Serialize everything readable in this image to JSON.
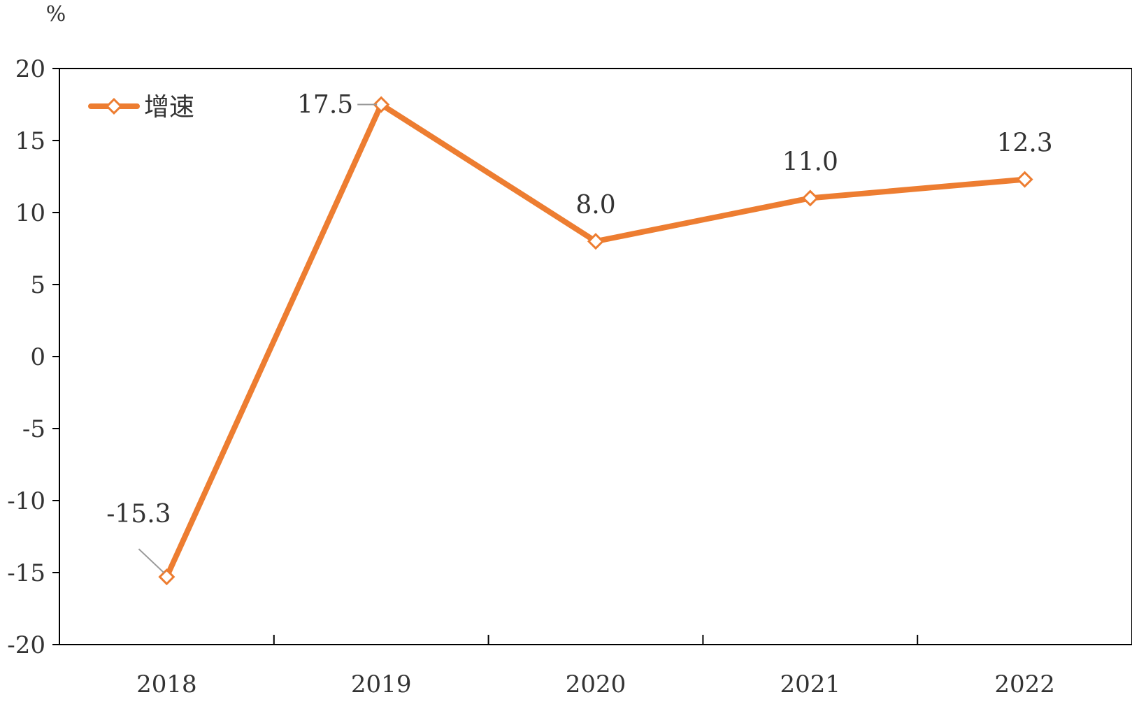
{
  "chart_data": {
    "type": "line",
    "title": "",
    "xlabel": "",
    "ylabel": "%",
    "categories": [
      "2018",
      "2019",
      "2020",
      "2021",
      "2022"
    ],
    "series": [
      {
        "name": "增速",
        "values": [
          -15.3,
          17.5,
          8.0,
          11.0,
          12.3
        ]
      }
    ],
    "data_labels": [
      "-15.3",
      "17.5",
      "8.0",
      "11.0",
      "12.3"
    ],
    "yticks": [
      "20",
      "15",
      "10",
      "5",
      "0",
      "-5",
      "-10",
      "-15",
      "-20"
    ],
    "ylim": [
      -20,
      20
    ],
    "grid": false,
    "legend": "top-left",
    "colors": {
      "line": "#ED7D31",
      "marker_fill": "#ffffff",
      "axis": "#000000",
      "leader": "#999999"
    }
  }
}
